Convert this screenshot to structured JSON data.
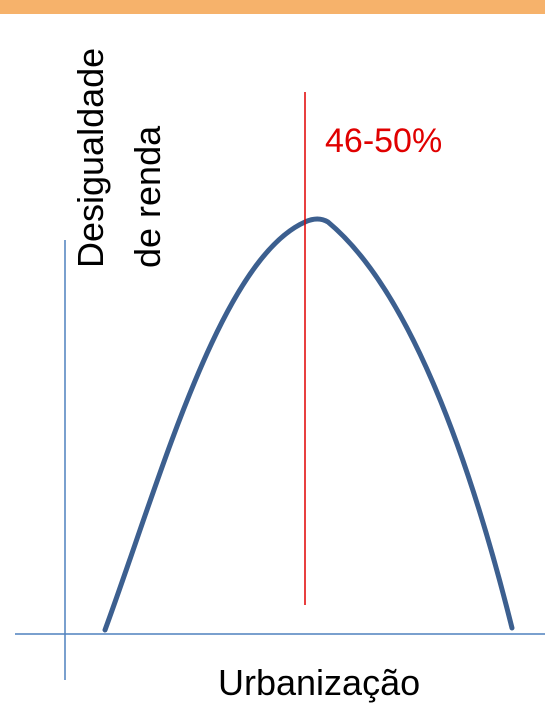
{
  "header": {
    "band_color": "#f6b26b"
  },
  "diagram": {
    "y_axis_label_line1": "Desigualdade",
    "y_axis_label_line2": "de renda",
    "x_axis_label": "Urbanização",
    "threshold_label": "46-50%",
    "threshold_color": "#e00000",
    "curve_color": "#3c5f8f",
    "axis_color": "#4f81bd"
  }
}
